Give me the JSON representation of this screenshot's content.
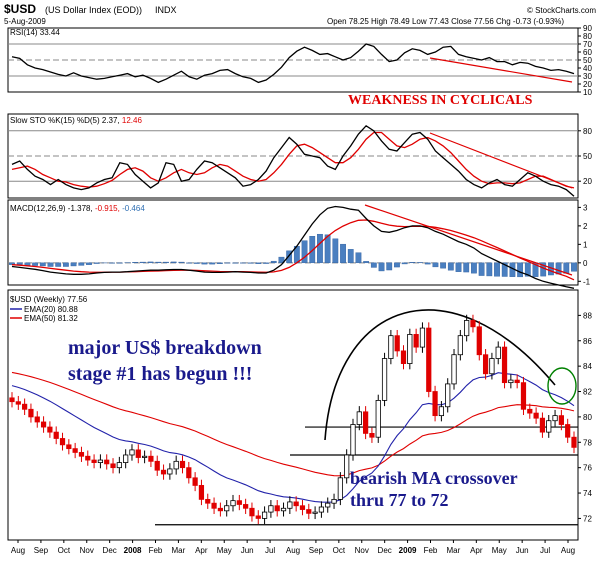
{
  "header": {
    "symbol": "$USD",
    "name": "(US Dollar Index (EOD))",
    "exchange": "INDX",
    "date": "5-Aug-2009",
    "ohlc": "Open 78.25  High 78.49  Low 77.43  Close 77.56  Chg -0.73 (-0.93%)",
    "watermark": "© StockCharts.com",
    "ohlc_color": "#000000",
    "chg_color": "#e00000"
  },
  "chart_data": [
    {
      "type": "line",
      "panel": "rsi",
      "legend": "RSI(14) 33.44",
      "ylim": [
        10,
        90
      ],
      "ticks": [
        10,
        20,
        30,
        40,
        50,
        60,
        70,
        80,
        90
      ],
      "guides": [
        30,
        50,
        70
      ],
      "series": [
        {
          "name": "RSI(14)",
          "color": "#000000",
          "values": [
            54,
            52,
            44,
            40,
            38,
            35,
            32,
            30,
            34,
            30,
            28,
            26,
            27,
            29,
            31,
            33,
            29,
            31,
            27,
            22,
            26,
            31,
            36,
            29,
            26,
            31,
            33,
            37,
            38,
            33,
            29,
            27,
            22,
            25,
            32,
            41,
            53,
            61,
            66,
            62,
            57,
            58,
            54,
            50,
            53,
            61,
            70,
            67,
            57,
            48,
            50,
            59,
            64,
            62,
            57,
            60,
            66,
            67,
            57,
            54,
            52,
            50,
            53,
            48,
            48,
            44,
            47,
            46,
            42,
            40,
            37,
            38,
            36,
            33
          ]
        }
      ],
      "annotation": "WEAKNESS IN CYCLICALS",
      "annotation_color": "#e00000"
    },
    {
      "type": "line",
      "panel": "stochastic",
      "legend_prefix": "Slow STO %K(15) %D(5)",
      "legend_k": "2.37",
      "legend_d": "12.46",
      "ylim": [
        0,
        100
      ],
      "ticks": [
        20,
        50,
        80
      ],
      "guides": [
        20,
        50,
        80
      ],
      "series": [
        {
          "name": "%K",
          "color": "#000000",
          "values": [
            40,
            44,
            34,
            26,
            22,
            16,
            22,
            16,
            12,
            10,
            12,
            18,
            22,
            24,
            42,
            40,
            28,
            20,
            12,
            18,
            42,
            40,
            20,
            22,
            34,
            44,
            42,
            36,
            30,
            24,
            14,
            16,
            22,
            32,
            48,
            60,
            72,
            64,
            52,
            50,
            48,
            38,
            34,
            50,
            62,
            76,
            86,
            80,
            68,
            58,
            56,
            66,
            76,
            78,
            70,
            56,
            48,
            40,
            32,
            22,
            16,
            12,
            18,
            22,
            16,
            14,
            22,
            30,
            26,
            20,
            16,
            14,
            10,
            2
          ]
        },
        {
          "name": "%D",
          "color": "#e00000",
          "values": [
            34,
            36,
            38,
            34,
            28,
            24,
            20,
            19,
            16,
            14,
            13,
            14,
            17,
            21,
            28,
            34,
            36,
            32,
            24,
            20,
            24,
            30,
            34,
            30,
            28,
            30,
            36,
            40,
            38,
            32,
            26,
            22,
            20,
            22,
            30,
            40,
            52,
            62,
            64,
            60,
            54,
            48,
            42,
            42,
            48,
            58,
            70,
            78,
            78,
            70,
            62,
            60,
            64,
            70,
            72,
            68,
            62,
            54,
            44,
            34,
            26,
            20,
            17,
            18,
            18,
            17,
            18,
            22,
            26,
            26,
            22,
            18,
            14,
            12
          ]
        }
      ]
    },
    {
      "type": "line",
      "panel": "macd",
      "legend_prefix": "MACD(12,26,9)",
      "legend_macd": "-1.378",
      "legend_signal": "-0.915",
      "legend_hist": "-0.464",
      "legend_signal_color": "#e00000",
      "legend_hist_color": "#2f6fb3",
      "ylim": [
        -1.2,
        3.4
      ],
      "ticks": [
        -1,
        0,
        1,
        2,
        3
      ],
      "series": [
        {
          "name": "MACD",
          "color": "#000000",
          "values": [
            -0.2,
            -0.25,
            -0.3,
            -0.35,
            -0.42,
            -0.5,
            -0.55,
            -0.6,
            -0.62,
            -0.62,
            -0.6,
            -0.55,
            -0.52,
            -0.5,
            -0.5,
            -0.48,
            -0.45,
            -0.42,
            -0.4,
            -0.4,
            -0.38,
            -0.36,
            -0.36,
            -0.4,
            -0.45,
            -0.5,
            -0.52,
            -0.52,
            -0.5,
            -0.48,
            -0.5,
            -0.52,
            -0.55,
            -0.55,
            -0.4,
            -0.1,
            0.4,
            0.9,
            1.5,
            2.1,
            2.6,
            2.95,
            3.05,
            3.0,
            2.9,
            2.85,
            2.4,
            2.0,
            1.7,
            1.65,
            1.75,
            1.9,
            2.0,
            2.0,
            1.9,
            1.7,
            1.55,
            1.35,
            1.15,
            1.0,
            0.8,
            0.5,
            0.3,
            0.1,
            -0.1,
            -0.3,
            -0.5,
            -0.65,
            -0.85,
            -1.0,
            -1.1,
            -1.2,
            -1.3,
            -1.38
          ]
        },
        {
          "name": "Signal",
          "color": "#e00000",
          "values": [
            -0.1,
            -0.13,
            -0.16,
            -0.2,
            -0.25,
            -0.3,
            -0.35,
            -0.4,
            -0.45,
            -0.48,
            -0.5,
            -0.51,
            -0.51,
            -0.5,
            -0.5,
            -0.49,
            -0.48,
            -0.46,
            -0.45,
            -0.44,
            -0.42,
            -0.41,
            -0.4,
            -0.4,
            -0.41,
            -0.43,
            -0.45,
            -0.47,
            -0.48,
            -0.48,
            -0.48,
            -0.49,
            -0.5,
            -0.51,
            -0.49,
            -0.41,
            -0.25,
            0.0,
            0.3,
            0.66,
            1.05,
            1.43,
            1.75,
            1.99,
            2.17,
            2.3,
            2.32,
            2.25,
            2.14,
            2.04,
            1.98,
            1.96,
            1.97,
            1.98,
            1.97,
            1.92,
            1.84,
            1.75,
            1.63,
            1.5,
            1.36,
            1.19,
            1.01,
            0.83,
            0.64,
            0.45,
            0.26,
            0.08,
            -0.1,
            -0.28,
            -0.44,
            -0.59,
            -0.73,
            -0.92
          ]
        }
      ]
    },
    {
      "type": "candlestick",
      "panel": "price",
      "legend_prefix": "$USD (Weekly)",
      "legend_close": "77.56",
      "legend_ema20": "EMA(20) 80.88",
      "legend_ema50": "EMA(50) 81.32",
      "ylim": [
        70.3,
        90.0
      ],
      "ticks": [
        72,
        74,
        76,
        78,
        80,
        82,
        84,
        86,
        88
      ],
      "x_labels": [
        "Aug",
        "Sep",
        "Oct",
        "Nov",
        "Dec",
        "2008",
        "Feb",
        "Mar",
        "Apr",
        "May",
        "Jun",
        "Jul",
        "Aug",
        "Sep",
        "Oct",
        "Nov",
        "Dec",
        "2009",
        "Feb",
        "Mar",
        "Apr",
        "May",
        "Jun",
        "Jul",
        "Aug"
      ],
      "close": [
        81.2,
        81.0,
        80.6,
        80.0,
        79.6,
        79.2,
        78.8,
        78.3,
        77.8,
        77.5,
        77.2,
        76.9,
        76.6,
        76.4,
        76.6,
        76.3,
        76.0,
        76.4,
        77.0,
        77.4,
        76.8,
        76.9,
        76.5,
        75.8,
        75.5,
        75.9,
        76.5,
        76.0,
        75.2,
        74.6,
        73.5,
        73.2,
        72.8,
        72.6,
        73.0,
        73.4,
        73.1,
        72.8,
        72.2,
        72.0,
        72.5,
        73.0,
        72.6,
        72.8,
        73.3,
        73.0,
        72.7,
        72.4,
        72.5,
        72.9,
        73.2,
        73.5,
        75.2,
        77.0,
        79.4,
        80.4,
        78.7,
        78.4,
        81.3,
        84.6,
        86.4,
        85.2,
        84.2,
        86.5,
        85.5,
        87.0,
        82.0,
        80.1,
        80.8,
        82.6,
        84.9,
        86.4,
        87.6,
        87.1,
        84.9,
        83.4,
        84.6,
        85.5,
        82.7,
        82.9,
        82.7,
        80.6,
        80.3,
        79.9,
        78.8,
        79.7,
        80.1,
        79.4,
        78.4,
        77.6
      ],
      "ema20_end": 80.88,
      "ema50_end": 81.32,
      "annotations": [
        {
          "text": "major US$ breakdown",
          "color": "#1a1a8c"
        },
        {
          "text": "stage #1 has begun !!!",
          "color": "#1a1a8c"
        },
        {
          "text": "bearish MA crossover",
          "color": "#1a1a8c"
        },
        {
          "text": "thru 77 to 72",
          "color": "#1a1a8c"
        }
      ],
      "hlines": [
        79.2,
        77.0,
        71.5
      ],
      "colors": {
        "up": "#ffffff",
        "down": "#e00000",
        "ema20": "#2222aa",
        "ema50": "#e00000",
        "arc": "#000000",
        "circle": "#008000"
      }
    }
  ]
}
